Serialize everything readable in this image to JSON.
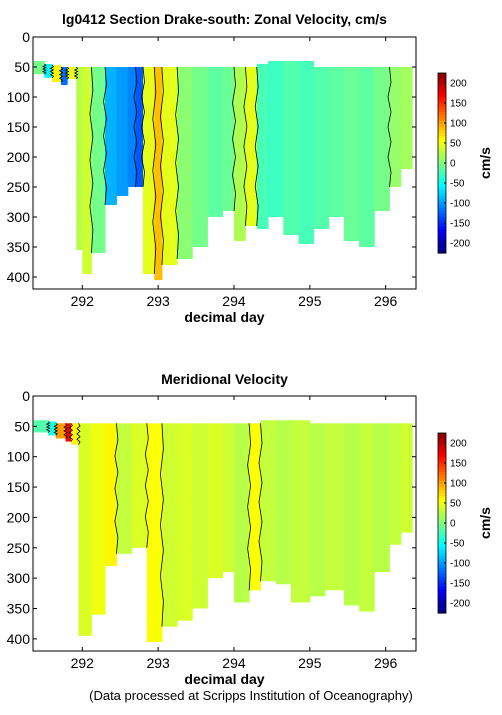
{
  "chart_data": [
    {
      "type": "heatmap",
      "title": "lg0412 Section Drake-south: Zonal Velocity, cm/s",
      "xlabel": "decimal day",
      "ylabel": "",
      "xlim": [
        291.35,
        296.4
      ],
      "ylim": [
        0,
        420
      ],
      "y_reversed": true,
      "xticks": [
        292,
        293,
        294,
        295,
        296
      ],
      "yticks": [
        0,
        50,
        100,
        150,
        200,
        250,
        300,
        350,
        400
      ],
      "colorbar": {
        "label": "cm/s",
        "min": -225,
        "max": 225,
        "ticks": [
          200,
          150,
          100,
          50,
          0,
          -50,
          -100,
          -150,
          -200
        ]
      },
      "colormap": "jet",
      "profiles": [
        {
          "x0": 291.36,
          "x1": 291.5,
          "top": 40,
          "bottom": 62,
          "value": -5
        },
        {
          "x0": 291.5,
          "x1": 291.6,
          "top": 45,
          "bottom": 68,
          "value": -60
        },
        {
          "x0": 291.6,
          "x1": 291.72,
          "top": 47,
          "bottom": 75,
          "value": 60
        },
        {
          "x0": 291.72,
          "x1": 291.8,
          "top": 50,
          "bottom": 80,
          "value": -120
        },
        {
          "x0": 291.8,
          "x1": 291.92,
          "top": 50,
          "bottom": 70,
          "value": 45
        },
        {
          "x0": 291.92,
          "x1": 292.0,
          "top": 50,
          "bottom": 355,
          "value": 25
        },
        {
          "x0": 292.0,
          "x1": 292.12,
          "top": 50,
          "bottom": 395,
          "value": 35
        },
        {
          "x0": 292.12,
          "x1": 292.3,
          "top": 50,
          "bottom": 360,
          "value": -5
        },
        {
          "x0": 292.3,
          "x1": 292.45,
          "top": 50,
          "bottom": 280,
          "value": -90
        },
        {
          "x0": 292.45,
          "x1": 292.6,
          "top": 50,
          "bottom": 265,
          "value": -100
        },
        {
          "x0": 292.6,
          "x1": 292.7,
          "top": 50,
          "bottom": 250,
          "value": -110
        },
        {
          "x0": 292.7,
          "x1": 292.8,
          "top": 50,
          "bottom": 250,
          "value": -130
        },
        {
          "x0": 292.8,
          "x1": 292.95,
          "top": 50,
          "bottom": 395,
          "value": 45
        },
        {
          "x0": 292.95,
          "x1": 293.05,
          "top": 50,
          "bottom": 405,
          "value": 85
        },
        {
          "x0": 293.05,
          "x1": 293.25,
          "top": 50,
          "bottom": 380,
          "value": 45
        },
        {
          "x0": 293.25,
          "x1": 293.45,
          "top": 50,
          "bottom": 370,
          "value": 5
        },
        {
          "x0": 293.45,
          "x1": 293.65,
          "top": 50,
          "bottom": 350,
          "value": -5
        },
        {
          "x0": 293.65,
          "x1": 293.85,
          "top": 50,
          "bottom": 300,
          "value": -15
        },
        {
          "x0": 293.85,
          "x1": 294.0,
          "top": 50,
          "bottom": 290,
          "value": -10
        },
        {
          "x0": 294.0,
          "x1": 294.15,
          "top": 50,
          "bottom": 340,
          "value": 20
        },
        {
          "x0": 294.15,
          "x1": 294.3,
          "top": 50,
          "bottom": 315,
          "value": 45
        },
        {
          "x0": 294.3,
          "x1": 294.45,
          "top": 45,
          "bottom": 320,
          "value": -25
        },
        {
          "x0": 294.45,
          "x1": 294.65,
          "top": 40,
          "bottom": 300,
          "value": -30
        },
        {
          "x0": 294.65,
          "x1": 294.85,
          "top": 40,
          "bottom": 330,
          "value": -20
        },
        {
          "x0": 294.85,
          "x1": 295.05,
          "top": 40,
          "bottom": 345,
          "value": -25
        },
        {
          "x0": 295.05,
          "x1": 295.25,
          "top": 50,
          "bottom": 320,
          "value": -20
        },
        {
          "x0": 295.25,
          "x1": 295.45,
          "top": 50,
          "bottom": 300,
          "value": -15
        },
        {
          "x0": 295.45,
          "x1": 295.65,
          "top": 50,
          "bottom": 340,
          "value": -10
        },
        {
          "x0": 295.65,
          "x1": 295.85,
          "top": 50,
          "bottom": 350,
          "value": -15
        },
        {
          "x0": 295.85,
          "x1": 296.05,
          "top": 50,
          "bottom": 290,
          "value": -5
        },
        {
          "x0": 296.05,
          "x1": 296.2,
          "top": 50,
          "bottom": 250,
          "value": 10
        },
        {
          "x0": 296.2,
          "x1": 296.35,
          "top": 50,
          "bottom": 220,
          "value": 15
        }
      ]
    },
    {
      "type": "heatmap",
      "title": "Meridional Velocity",
      "xlabel": "decimal day",
      "ylabel": "",
      "xlim": [
        291.35,
        296.4
      ],
      "ylim": [
        0,
        420
      ],
      "y_reversed": true,
      "xticks": [
        292,
        293,
        294,
        295,
        296
      ],
      "yticks": [
        0,
        50,
        100,
        150,
        200,
        250,
        300,
        350,
        400
      ],
      "colorbar": {
        "label": "cm/s",
        "min": -225,
        "max": 225,
        "ticks": [
          200,
          150,
          100,
          50,
          0,
          -50,
          -100,
          -150,
          -200
        ]
      },
      "colormap": "jet",
      "profiles": [
        {
          "x0": 291.36,
          "x1": 291.55,
          "top": 40,
          "bottom": 60,
          "value": -20
        },
        {
          "x0": 291.55,
          "x1": 291.65,
          "top": 42,
          "bottom": 65,
          "value": -45
        },
        {
          "x0": 291.65,
          "x1": 291.78,
          "top": 45,
          "bottom": 70,
          "value": 100
        },
        {
          "x0": 291.78,
          "x1": 291.85,
          "top": 45,
          "bottom": 75,
          "value": 170
        },
        {
          "x0": 291.85,
          "x1": 291.95,
          "top": 45,
          "bottom": 80,
          "value": 60
        },
        {
          "x0": 291.95,
          "x1": 292.12,
          "top": 45,
          "bottom": 395,
          "value": 40
        },
        {
          "x0": 292.12,
          "x1": 292.3,
          "top": 45,
          "bottom": 360,
          "value": 50
        },
        {
          "x0": 292.3,
          "x1": 292.45,
          "top": 45,
          "bottom": 280,
          "value": 60
        },
        {
          "x0": 292.45,
          "x1": 292.65,
          "top": 45,
          "bottom": 260,
          "value": 30
        },
        {
          "x0": 292.65,
          "x1": 292.85,
          "top": 45,
          "bottom": 250,
          "value": 40
        },
        {
          "x0": 292.85,
          "x1": 293.05,
          "top": 45,
          "bottom": 405,
          "value": 55
        },
        {
          "x0": 293.05,
          "x1": 293.25,
          "top": 45,
          "bottom": 380,
          "value": 35
        },
        {
          "x0": 293.25,
          "x1": 293.45,
          "top": 45,
          "bottom": 370,
          "value": 40
        },
        {
          "x0": 293.45,
          "x1": 293.65,
          "top": 45,
          "bottom": 350,
          "value": 35
        },
        {
          "x0": 293.65,
          "x1": 293.85,
          "top": 45,
          "bottom": 300,
          "value": 40
        },
        {
          "x0": 293.85,
          "x1": 294.0,
          "top": 45,
          "bottom": 290,
          "value": 35
        },
        {
          "x0": 294.0,
          "x1": 294.2,
          "top": 45,
          "bottom": 340,
          "value": 25
        },
        {
          "x0": 294.2,
          "x1": 294.35,
          "top": 45,
          "bottom": 320,
          "value": 55
        },
        {
          "x0": 294.35,
          "x1": 294.55,
          "top": 40,
          "bottom": 305,
          "value": 30
        },
        {
          "x0": 294.55,
          "x1": 294.75,
          "top": 40,
          "bottom": 310,
          "value": 25
        },
        {
          "x0": 294.75,
          "x1": 295.0,
          "top": 40,
          "bottom": 340,
          "value": 30
        },
        {
          "x0": 295.0,
          "x1": 295.2,
          "top": 45,
          "bottom": 330,
          "value": 25
        },
        {
          "x0": 295.2,
          "x1": 295.45,
          "top": 45,
          "bottom": 320,
          "value": 30
        },
        {
          "x0": 295.45,
          "x1": 295.65,
          "top": 45,
          "bottom": 345,
          "value": 25
        },
        {
          "x0": 295.65,
          "x1": 295.85,
          "top": 45,
          "bottom": 355,
          "value": 30
        },
        {
          "x0": 295.85,
          "x1": 296.05,
          "top": 45,
          "bottom": 290,
          "value": 25
        },
        {
          "x0": 296.05,
          "x1": 296.2,
          "top": 45,
          "bottom": 245,
          "value": 30
        },
        {
          "x0": 296.2,
          "x1": 296.35,
          "top": 45,
          "bottom": 225,
          "value": 35
        }
      ]
    }
  ],
  "footer": "(Data processed at Scripps Institution of Oceanography)"
}
